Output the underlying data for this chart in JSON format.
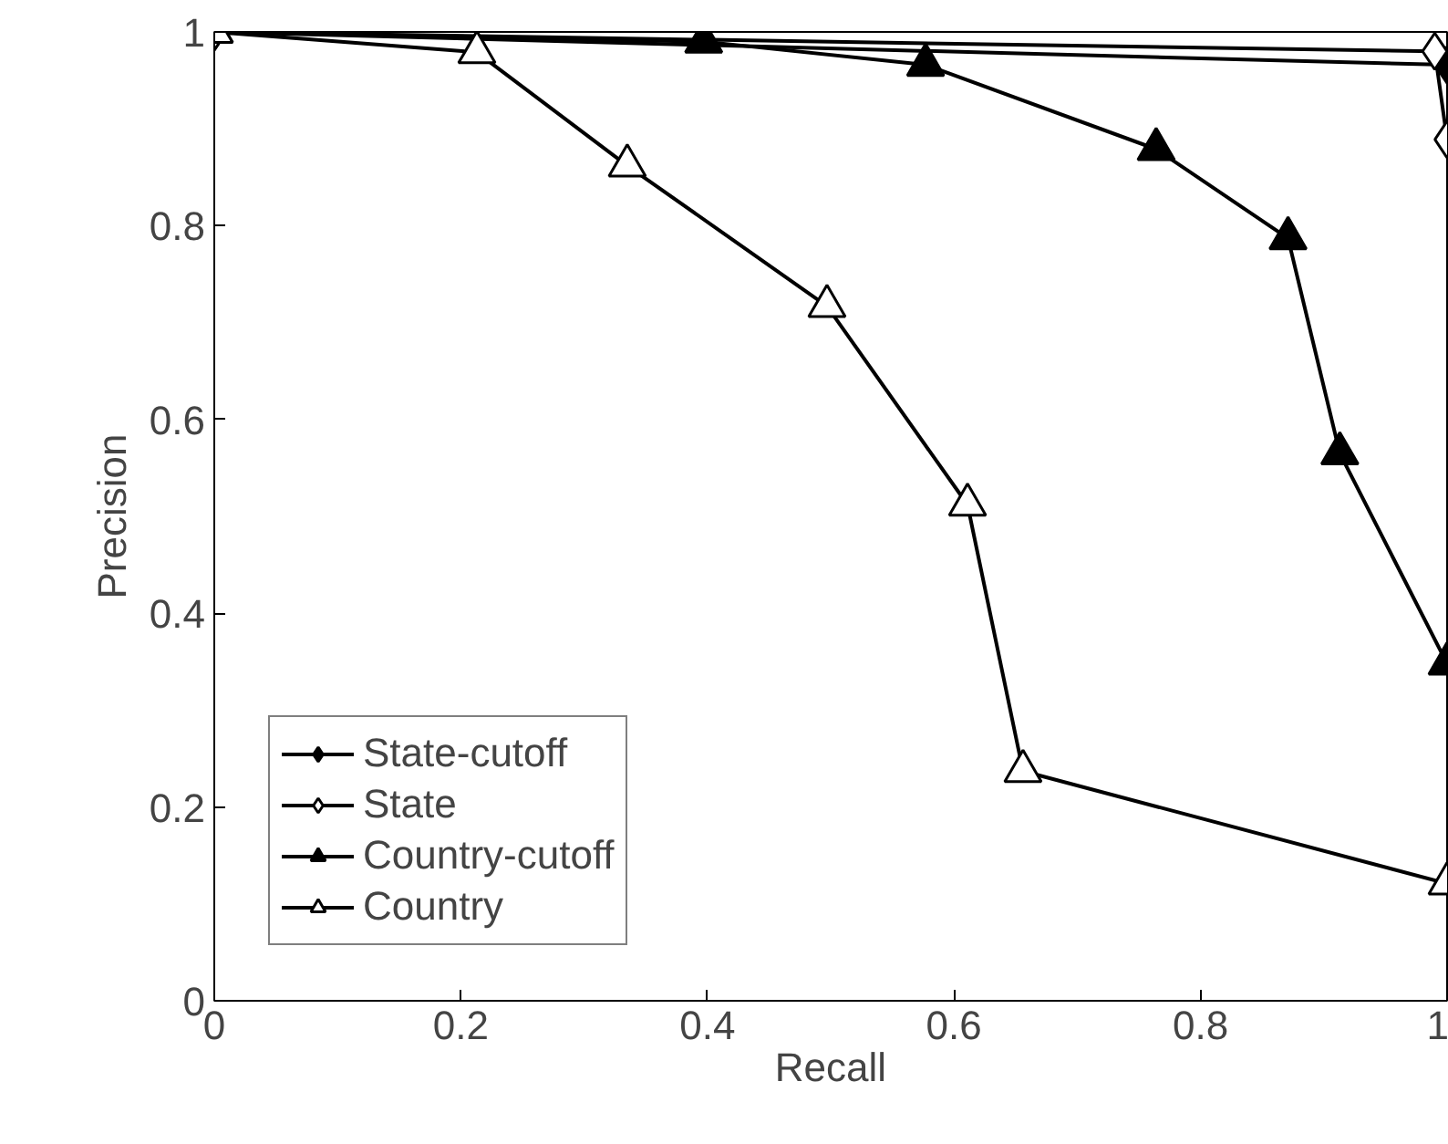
{
  "chart_data": {
    "type": "line",
    "xlabel": "Recall",
    "ylabel": "Precision",
    "xlim": [
      0,
      1
    ],
    "ylim": [
      0,
      1
    ],
    "xticks": [
      0,
      0.2,
      0.4,
      0.6,
      0.8,
      1
    ],
    "yticks": [
      0,
      0.2,
      0.4,
      0.6,
      0.8,
      1
    ],
    "grid": false,
    "legend": "bottom left",
    "line_style": "solid",
    "series": [
      {
        "name": "State-cutoff",
        "color": "#000000",
        "marker": "diamond",
        "x": [
          0,
          1.0
        ],
        "values": [
          1.0,
          0.966
        ]
      },
      {
        "name": "State",
        "color": "#000000",
        "marker": "diamond",
        "colors": [
          "#ffffff",
          "#ffffff",
          "#ffffff"
        ],
        "x": [
          0,
          0.99,
          1.0
        ],
        "values": [
          1.0,
          0.98,
          0.889
        ]
      },
      {
        "name": "Country-cutoff",
        "color": "#000000",
        "marker": "triangle",
        "x": [
          0,
          0.397,
          0.577,
          0.764,
          0.871,
          0.913,
          1.0
        ],
        "values": [
          1.0,
          0.99,
          0.966,
          0.879,
          0.787,
          0.565,
          0.348
        ]
      },
      {
        "name": "Country",
        "color": "#000000",
        "marker": "triangle",
        "colors": [
          "#ffffff",
          "#ffffff",
          "#ffffff",
          "#ffffff",
          "#ffffff",
          "#ffffff",
          "#ffffff"
        ],
        "x": [
          0,
          0.213,
          0.335,
          0.497,
          0.611,
          0.656,
          1.0
        ],
        "values": [
          1.0,
          0.979,
          0.862,
          0.717,
          0.512,
          0.237,
          0.121
        ]
      }
    ]
  }
}
